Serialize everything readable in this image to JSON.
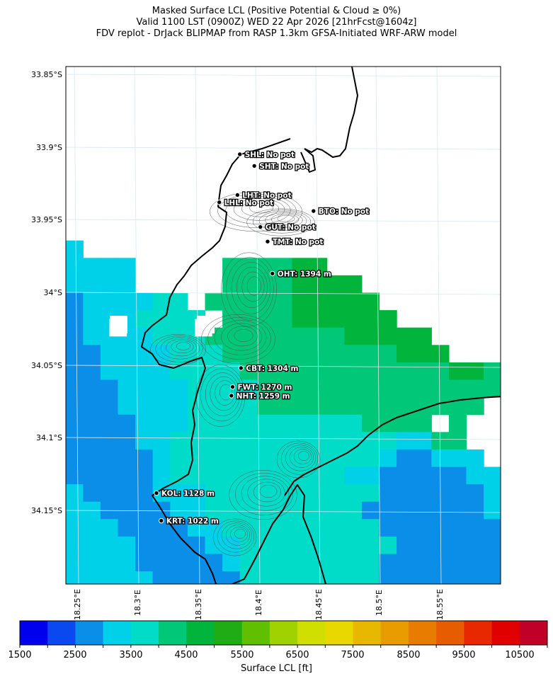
{
  "header": {
    "line1": "Masked Surface LCL (Positive Potential & Cloud ≥ 0%)",
    "line2": "Valid 1100 LST (0900Z) WED 22 Apr 2026 [21hrFcst@1604z]",
    "line3": "FDV replot - DrJack BLIPMAP from RASP 1.3km GFSA-Initiated WRF-ARW model"
  },
  "axes": {
    "lat_labels": [
      "33.85°S",
      "33.9°S",
      "33.95°S",
      "34°S",
      "34.05°S",
      "34.1°S",
      "34.15°S"
    ],
    "lon_labels": [
      "18.25°E",
      "18.3°E",
      "18.35°E",
      "18.4°E",
      "18.45°E",
      "18.5°E",
      "18.55°E"
    ]
  },
  "stations": [
    {
      "code": "SHL",
      "text": "SHL: No pot",
      "lon": 18.387,
      "lat": -33.905
    },
    {
      "code": "SHT",
      "text": "SHT: No pot",
      "lon": 18.399,
      "lat": -33.913
    },
    {
      "code": "LHT",
      "text": "LHT: No pot",
      "lon": 18.385,
      "lat": -33.933
    },
    {
      "code": "LHL",
      "text": "LHL: No pot",
      "lon": 18.37,
      "lat": -33.938
    },
    {
      "code": "BTO",
      "text": "BTO: No pot",
      "lon": 18.448,
      "lat": -33.944
    },
    {
      "code": "GUT",
      "text": "GUT: No pot",
      "lon": 18.404,
      "lat": -33.955
    },
    {
      "code": "TMT",
      "text": "TMT: No pot",
      "lon": 18.41,
      "lat": -33.965
    },
    {
      "code": "OHT",
      "text": "OHT: 1394 m",
      "lon": 18.414,
      "lat": -33.987
    },
    {
      "code": "CBT",
      "text": "CBT: 1304 m",
      "lon": 18.388,
      "lat": -34.052
    },
    {
      "code": "FWT",
      "text": "FWT: 1270 m",
      "lon": 18.381,
      "lat": -34.065
    },
    {
      "code": "NHT",
      "text": "NHT: 1259 m",
      "lon": 18.38,
      "lat": -34.071
    },
    {
      "code": "KOL",
      "text": "KOL: 1128 m",
      "lon": 18.318,
      "lat": -34.138
    },
    {
      "code": "KRT",
      "text": "KRT: 1022 m",
      "lon": 18.322,
      "lat": -34.157
    }
  ],
  "colorbar": {
    "label": "Surface LCL [ft]",
    "min": 1500,
    "max": 11000,
    "step": 500,
    "tick_labels": [
      "1500",
      "2500",
      "3500",
      "4500",
      "5500",
      "6500",
      "7500",
      "8500",
      "9500",
      "10500"
    ],
    "colors": [
      "#0000ee",
      "#0a48f0",
      "#0a8ee8",
      "#00d0e8",
      "#00dcc8",
      "#00c878",
      "#00b43c",
      "#20ac14",
      "#60c000",
      "#a0d200",
      "#d0de00",
      "#e8d800",
      "#e8b800",
      "#e89c00",
      "#e87c00",
      "#e85c00",
      "#e82800",
      "#e00000",
      "#c00028"
    ]
  },
  "legend_colors": {
    "blue": "#0a8ee8",
    "cyan": "#00d0e8",
    "teal": "#00dcc8",
    "green": "#00c878",
    "darkgreen": "#00b43c",
    "coast": "#000000",
    "contour": "#555555"
  },
  "field_grid": [
    "00000000000000000000000000",
    "00000000000000000000000000",
    "00000000000000000000000000",
    "00000000000000000000000000",
    "00000000000000000000000000",
    "00000000000000000000000000",
    "00000000000000000000000000",
    "00000000000000000000000000",
    "00000000000000000000000000",
    "00000000000000000000000000",
    "00000000000000000000000000",
    "00000000000000000000000000",
    "00000000000000000000000000",
    "00000000000000000000000000",
    "00000000000000000000000000",
    "00000000000000000000000000",
    "00000000000000000000000000",
    "00000000000000000000000000",
    "00000000000000000000000000",
    "00000000000000000000000000",
    "00000000000000000000000000",
    "00000000000000000000000000",
    "00000000000000000000000000",
    "00000000000000000000000000",
    "00000000000000000000000000",
    "00000000000000000000000000",
    "00000000000000000000000000",
    "00000000000000000000000000",
    "00000000000000000000000000"
  ]
}
